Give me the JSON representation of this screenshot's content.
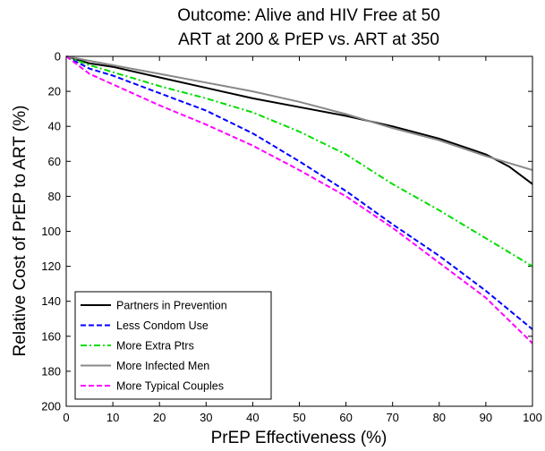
{
  "chart_data": {
    "type": "line",
    "title": [
      "Outcome: Alive and HIV Free at 50",
      "ART at 200 & PrEP vs. ART at 350"
    ],
    "xlabel": "PrEP Effectiveness (%)",
    "ylabel": "Relative Cost of PrEP to ART (%)",
    "xlim": [
      0,
      100
    ],
    "ylim": [
      0,
      200
    ],
    "y_reversed": true,
    "xticks": [
      0,
      10,
      20,
      30,
      40,
      50,
      60,
      70,
      80,
      90,
      100
    ],
    "yticks": [
      0,
      20,
      40,
      60,
      80,
      100,
      120,
      140,
      160,
      180,
      200
    ],
    "grid": false,
    "legend_position": "bottom-left",
    "series": [
      {
        "name": "Partners in Prevention",
        "color": "#000000",
        "dash": "solid",
        "x": [
          0,
          5,
          10,
          20,
          30,
          40,
          50,
          60,
          70,
          80,
          90,
          95,
          100
        ],
        "y": [
          0,
          4,
          6,
          12,
          18,
          24,
          29,
          34,
          40,
          47,
          56,
          63,
          73
        ]
      },
      {
        "name": "Less Condom Use",
        "color": "#0000ff",
        "dash": "dashed",
        "x": [
          0,
          5,
          10,
          20,
          30,
          40,
          50,
          60,
          70,
          80,
          90,
          100
        ],
        "y": [
          0,
          7,
          11,
          21,
          31,
          44,
          60,
          77,
          96,
          114,
          134,
          156
        ]
      },
      {
        "name": "More Extra Ptrs",
        "color": "#00dd00",
        "dash": "dashdot",
        "x": [
          0,
          5,
          10,
          20,
          30,
          40,
          50,
          60,
          70,
          80,
          90,
          100
        ],
        "y": [
          0,
          5,
          9,
          17,
          24,
          32,
          43,
          56,
          73,
          88,
          104,
          120
        ]
      },
      {
        "name": "More Infected Men",
        "color": "#888888",
        "dash": "solid",
        "x": [
          0,
          10,
          20,
          30,
          40,
          50,
          60,
          70,
          80,
          90,
          100
        ],
        "y": [
          0,
          5,
          10,
          15,
          20,
          26,
          33,
          41,
          48,
          57,
          65
        ]
      },
      {
        "name": "More Typical Couples",
        "color": "#ff00ff",
        "dash": "dashed",
        "x": [
          0,
          5,
          10,
          20,
          30,
          40,
          50,
          60,
          70,
          80,
          90,
          100
        ],
        "y": [
          0,
          10,
          16,
          28,
          39,
          51,
          65,
          80,
          98,
          118,
          138,
          164
        ]
      }
    ]
  }
}
